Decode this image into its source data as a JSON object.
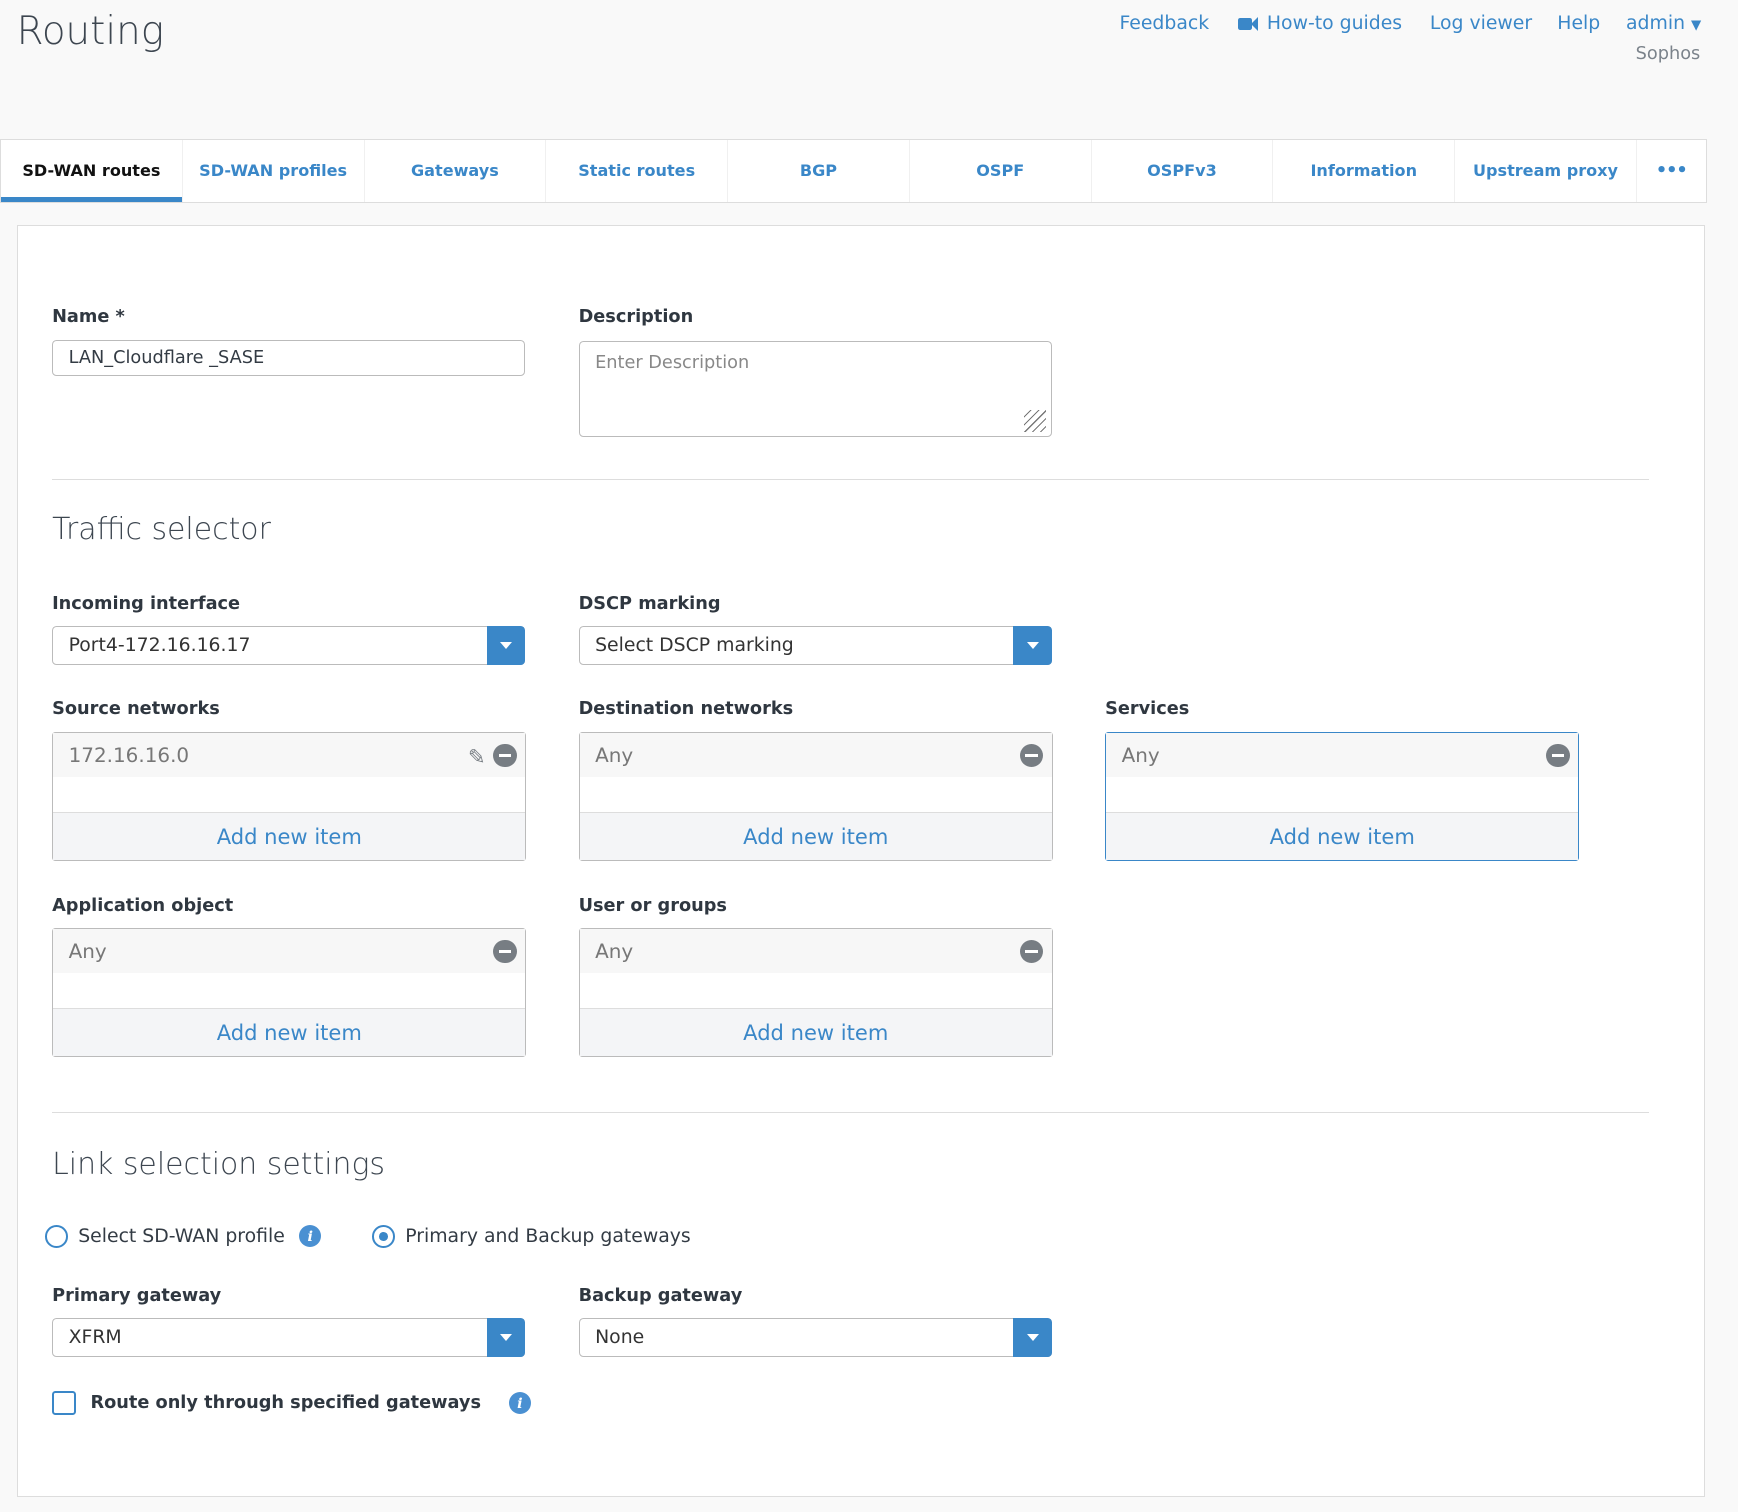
{
  "header": {
    "title": "Routing",
    "links": {
      "feedback": "Feedback",
      "howto": "How-to guides",
      "logviewer": "Log viewer",
      "help": "Help",
      "user": "admin",
      "org": "Sophos"
    }
  },
  "tabs": [
    "SD-WAN routes",
    "SD-WAN profiles",
    "Gateways",
    "Static routes",
    "BGP",
    "OSPF",
    "OSPFv3",
    "Information",
    "Upstream proxy",
    "•••"
  ],
  "form": {
    "name_label": "Name *",
    "name_value": "LAN_Cloudflare _SASE",
    "description_label": "Description",
    "description_placeholder": "Enter Description",
    "traffic_heading": "Traffic selector",
    "incoming_label": "Incoming interface",
    "incoming_value": "Port4-172.16.16.17",
    "dscp_label": "DSCP marking",
    "dscp_value": "Select DSCP marking",
    "source_label": "Source networks",
    "source_item": "172.16.16.0",
    "dest_label": "Destination networks",
    "dest_item": "Any",
    "services_label": "Services",
    "services_item": "Any",
    "app_label": "Application object",
    "app_item": "Any",
    "users_label": "User or groups",
    "users_item": "Any",
    "add_new": "Add new item",
    "link_heading": "Link selection settings",
    "radio_profile": "Select SD-WAN profile",
    "radio_gateways": "Primary and Backup gateways",
    "selected_radio": "Primary and Backup gateways",
    "primary_label": "Primary gateway",
    "primary_value": "XFRM",
    "backup_label": "Backup gateway",
    "backup_value": "None",
    "route_only_label": "Route only through specified gateways",
    "route_only_checked": false
  },
  "colors": {
    "accent": "#3a87c8"
  }
}
